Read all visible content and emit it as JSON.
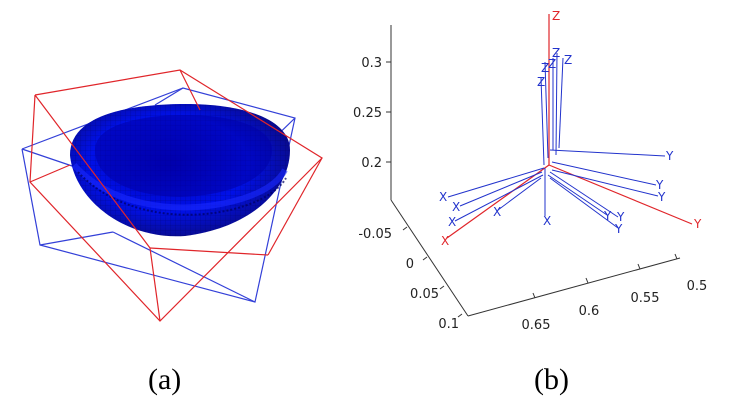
{
  "panel_a": {
    "caption": "(a)"
  },
  "panel_b": {
    "caption": "(b)",
    "z_ticks": [
      "0.3",
      "0.25",
      "0.2"
    ],
    "y_ticks": [
      "-0.05",
      "0",
      "0.05",
      "0.1"
    ],
    "x_ticks": [
      "0.65",
      "0.6",
      "0.55",
      "0.5"
    ],
    "axis_letters": {
      "x": "X",
      "y": "Y",
      "z": "Z"
    },
    "colors": {
      "world_frame": "#e0252a",
      "camera_frames": "#2233cc",
      "axes": "#333333"
    }
  },
  "colors": {
    "bowl": "#0a14e6",
    "box_red": "#e0252a",
    "box_blue": "#3340d8"
  }
}
